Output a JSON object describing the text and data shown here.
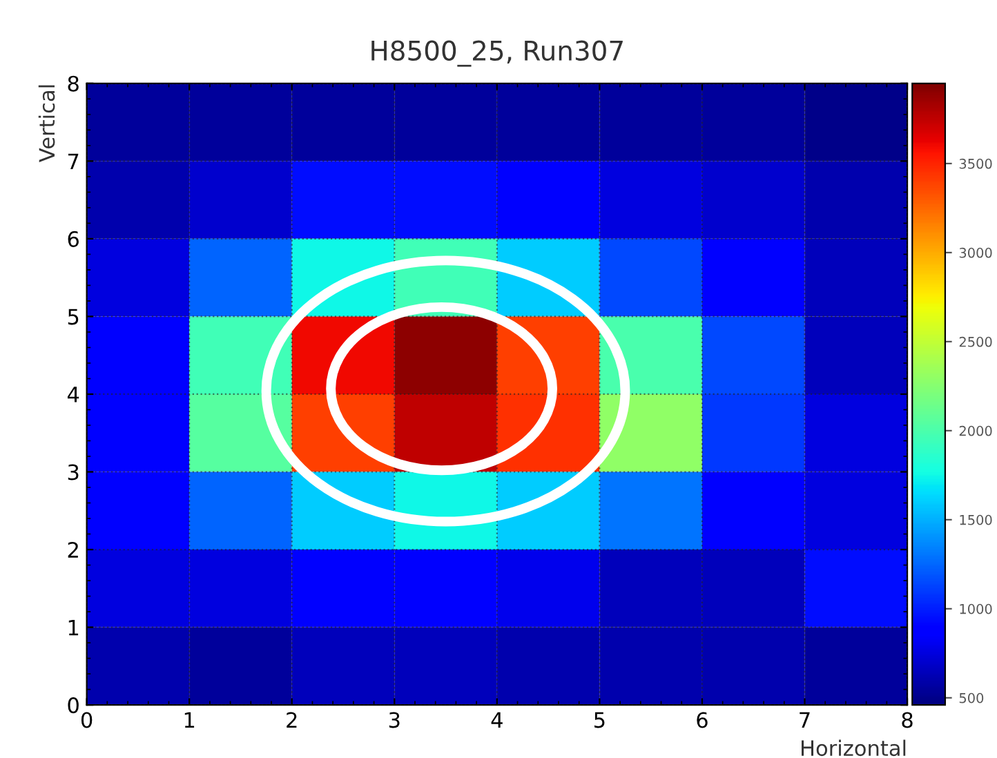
{
  "chart_data": {
    "type": "heatmap",
    "title": "H8500_25, Run307",
    "xlabel": "Horizontal",
    "ylabel": "Vertical",
    "x": [
      0.5,
      1.5,
      2.5,
      3.5,
      4.5,
      5.5,
      6.5,
      7.5
    ],
    "y": [
      7.5,
      6.5,
      5.5,
      4.5,
      3.5,
      2.5,
      1.5,
      0.5
    ],
    "xlim": [
      0,
      8
    ],
    "xticks": [
      0,
      1,
      2,
      3,
      4,
      5,
      6,
      7,
      8
    ],
    "ylim": [
      0,
      8
    ],
    "yticks": [
      0,
      1,
      2,
      3,
      4,
      5,
      6,
      7,
      8
    ],
    "cells": [
      [
        550,
        550,
        550,
        550,
        550,
        550,
        550,
        500
      ],
      [
        600,
        700,
        950,
        950,
        850,
        750,
        700,
        600
      ],
      [
        750,
        1250,
        1750,
        1950,
        1600,
        1150,
        900,
        650
      ],
      [
        900,
        1950,
        3600,
        3900,
        3400,
        2000,
        1150,
        650
      ],
      [
        900,
        2050,
        3400,
        3750,
        3450,
        2300,
        1100,
        750
      ],
      [
        850,
        1250,
        1600,
        1750,
        1600,
        1300,
        850,
        750
      ],
      [
        750,
        750,
        900,
        900,
        800,
        650,
        650,
        950
      ],
      [
        600,
        550,
        650,
        650,
        600,
        600,
        600,
        550
      ]
    ],
    "clim": [
      460,
      3950
    ],
    "cticks": [
      500,
      1000,
      1500,
      2000,
      2500,
      3000,
      3500
    ],
    "grid": true
  }
}
